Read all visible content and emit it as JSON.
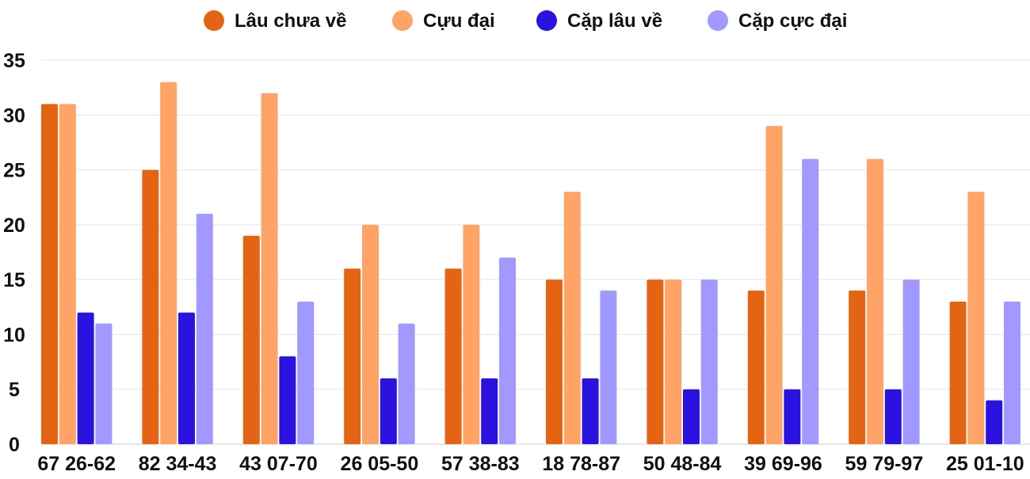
{
  "chart_data": {
    "type": "bar",
    "title": "",
    "xlabel": "",
    "ylabel": "",
    "ylim": [
      0,
      35
    ],
    "yticks": [
      0,
      5,
      10,
      15,
      20,
      25,
      30,
      35
    ],
    "grid": true,
    "legend_position": "top",
    "categories": [
      "67 26-62",
      "82 34-43",
      "43 07-70",
      "26 05-50",
      "57 38-83",
      "18 78-87",
      "50 48-84",
      "39 69-96",
      "59 79-97",
      "25 01-10"
    ],
    "series": [
      {
        "name": "Lâu chưa về",
        "color": "#E46414",
        "values": [
          31,
          25,
          19,
          16,
          16,
          15,
          15,
          14,
          14,
          13
        ]
      },
      {
        "name": "Cựu đại",
        "color": "#FFA366",
        "values": [
          31,
          33,
          32,
          20,
          20,
          23,
          15,
          29,
          26,
          23
        ]
      },
      {
        "name": "Cặp lâu về",
        "color": "#2A12E0",
        "values": [
          12,
          12,
          8,
          6,
          6,
          6,
          5,
          5,
          5,
          4
        ]
      },
      {
        "name": "Cặp cực đại",
        "color": "#A199FF",
        "values": [
          11,
          21,
          13,
          11,
          17,
          14,
          15,
          26,
          15,
          13
        ]
      }
    ]
  }
}
